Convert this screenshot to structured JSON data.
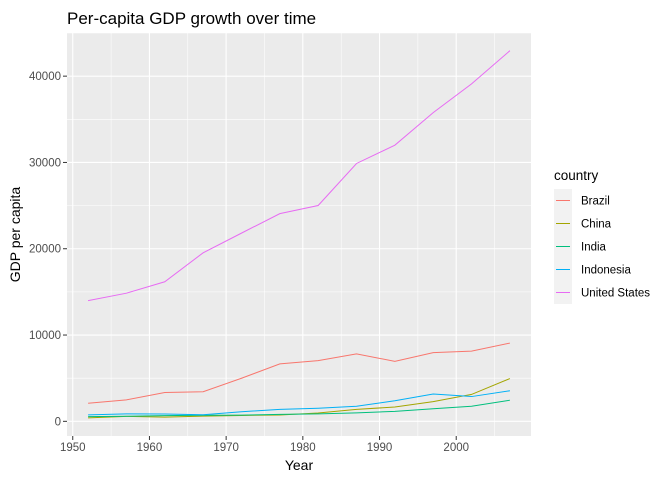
{
  "chart_data": {
    "type": "line",
    "title": "Per-capita GDP growth over time",
    "xlabel": "Year",
    "ylabel": "GDP per capita",
    "x": [
      1952,
      1957,
      1962,
      1967,
      1972,
      1977,
      1982,
      1987,
      1992,
      1997,
      2002,
      2007
    ],
    "xlim": [
      1949.25,
      2009.75
    ],
    "ylim": [
      -1700,
      45000
    ],
    "xticks": [
      1950,
      1960,
      1970,
      1980,
      1990,
      2000
    ],
    "yticks": [
      0,
      10000,
      20000,
      30000,
      40000
    ],
    "xtick_labels": [
      "1950",
      "1960",
      "1970",
      "1980",
      "1990",
      "2000"
    ],
    "ytick_labels": [
      "0",
      "10000",
      "20000",
      "30000",
      "40000"
    ],
    "grid": true,
    "legend": {
      "title": "country",
      "position": "right"
    },
    "series": [
      {
        "name": "Brazil",
        "color": "#F8766D",
        "values": [
          2100,
          2490,
          3340,
          3430,
          4990,
          6660,
          7030,
          7810,
          6950,
          7960,
          8130,
          9070
        ]
      },
      {
        "name": "China",
        "color": "#A3A500",
        "values": [
          400,
          580,
          490,
          610,
          680,
          740,
          960,
          1380,
          1660,
          2290,
          3120,
          4960
        ]
      },
      {
        "name": "India",
        "color": "#00BF7D",
        "values": [
          550,
          590,
          660,
          700,
          720,
          810,
          860,
          980,
          1160,
          1460,
          1750,
          2450
        ]
      },
      {
        "name": "Indonesia",
        "color": "#00B0F6",
        "values": [
          750,
          860,
          850,
          760,
          1110,
          1380,
          1520,
          1750,
          2380,
          3160,
          2870,
          3540
        ]
      },
      {
        "name": "United States",
        "color": "#E76BF3",
        "values": [
          13990,
          14850,
          16170,
          19530,
          21810,
          24070,
          25010,
          29880,
          32000,
          35770,
          39100,
          42950
        ]
      }
    ]
  }
}
